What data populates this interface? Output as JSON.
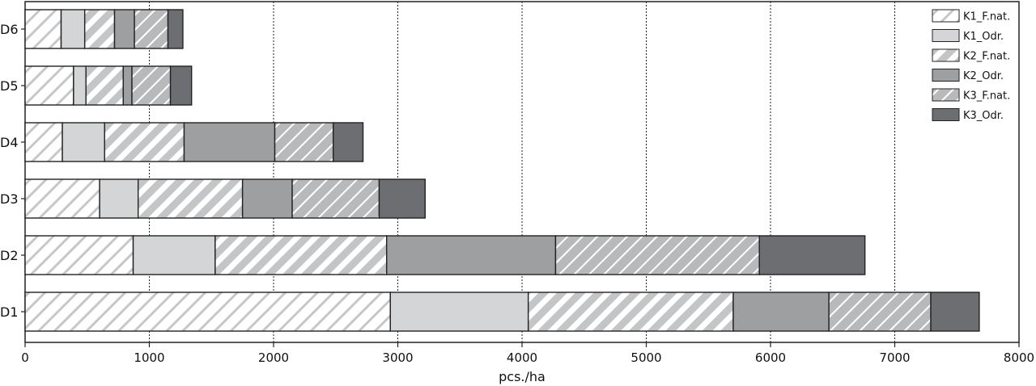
{
  "chart_data": {
    "type": "bar",
    "orientation": "horizontal",
    "stacked": true,
    "title": "",
    "xlabel": "pcs./ha",
    "ylabel": "",
    "xlim": [
      0,
      8000
    ],
    "xticks": [
      "0",
      "1000",
      "2000",
      "3000",
      "4000",
      "5000",
      "6000",
      "7000",
      "8000"
    ],
    "grid": "vertical dotted lines at 1000-unit intervals",
    "legend_position": "top-right",
    "categories": [
      "D6",
      "D5",
      "D4",
      "D3",
      "D2",
      "D1"
    ],
    "series": [
      {
        "name": "K1_F.nat.",
        "values": [
          290,
          390,
          300,
          600,
          870,
          2940
        ],
        "color": "#ffffff",
        "pattern": "diag-light"
      },
      {
        "name": "K1_Odr.",
        "values": [
          190,
          100,
          340,
          310,
          660,
          1110
        ],
        "color": "#d4d5d6",
        "pattern": "solid"
      },
      {
        "name": "K2_F.nat.",
        "values": [
          240,
          300,
          640,
          840,
          1380,
          1650
        ],
        "color": "#c4c5c7",
        "pattern": "diag-wide"
      },
      {
        "name": "K2_Odr.",
        "values": [
          160,
          70,
          730,
          400,
          1360,
          770
        ],
        "color": "#9e9fa1",
        "pattern": "solid"
      },
      {
        "name": "K3_F.nat.",
        "values": [
          270,
          310,
          470,
          700,
          1640,
          820
        ],
        "color": "#b8b9bb",
        "pattern": "diag-cross"
      },
      {
        "name": "K3_Odr.",
        "values": [
          120,
          170,
          240,
          370,
          850,
          390
        ],
        "color": "#6d6e71",
        "pattern": "solid"
      }
    ]
  }
}
